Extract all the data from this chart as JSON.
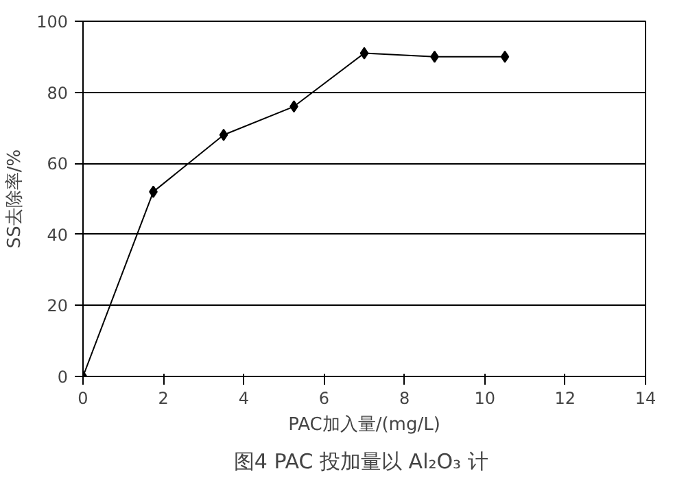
{
  "chart_data": {
    "type": "line",
    "xlabel": "PAC加入量/(mg/L)",
    "ylabel": "SS去除率/%",
    "annotations": [
      "图4  PAC 投加量以 Al₂O₃ 计"
    ],
    "x": [
      0,
      1.75,
      3.5,
      5.25,
      7,
      8.75,
      10.5
    ],
    "series": [
      {
        "color": "#000000",
        "values": [
          0,
          52,
          68,
          76,
          91,
          90,
          90
        ]
      }
    ],
    "xlim": [
      0,
      14
    ],
    "xticks": [
      0,
      2,
      4,
      6,
      8,
      10,
      12,
      14
    ],
    "ylim": [
      0,
      100
    ],
    "yticks": [
      0,
      20,
      40,
      60,
      80,
      100
    ],
    "grid": "y",
    "marker": "diamond",
    "line_style": "solid"
  }
}
